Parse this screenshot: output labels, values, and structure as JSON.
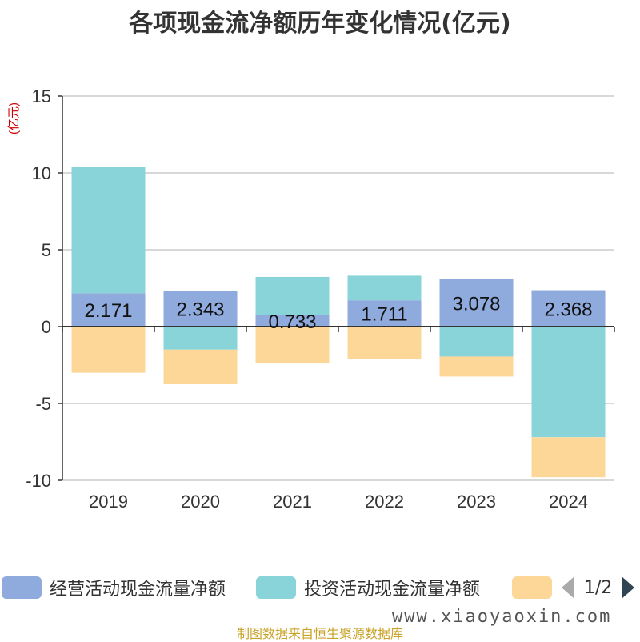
{
  "chart_data": {
    "type": "bar",
    "stacked": true,
    "title": "各项现金流净额历年变化情况(亿元)",
    "ylabel": "(亿元)",
    "xlabel": "",
    "categories": [
      "2019",
      "2020",
      "2021",
      "2022",
      "2023",
      "2024"
    ],
    "ylim": [
      -10,
      15
    ],
    "yticks": [
      -10,
      -5,
      0,
      5,
      10,
      15
    ],
    "grid": true,
    "series": [
      {
        "name": "经营活动现金流量净额",
        "color": "#8faadc",
        "values": [
          2.171,
          2.343,
          0.733,
          1.711,
          3.078,
          2.368
        ],
        "labels": [
          "2.171",
          "2.343",
          "0.733",
          "1.711",
          "3.078",
          "2.368"
        ]
      },
      {
        "name": "投资活动现金流量净额",
        "color": "#88d4d8",
        "values": [
          8.2,
          -1.5,
          2.5,
          1.6,
          -1.95,
          -7.2
        ]
      },
      {
        "name": "",
        "color": "#fdd797",
        "values": [
          -3.0,
          -2.25,
          -2.4,
          -2.1,
          -1.3,
          -2.6
        ]
      }
    ],
    "legend_position": "bottom"
  },
  "legend": {
    "page": "1/2"
  },
  "watermark": "www.xiaoyaoxin.com",
  "source": "制图数据来自恒生聚源数据库"
}
